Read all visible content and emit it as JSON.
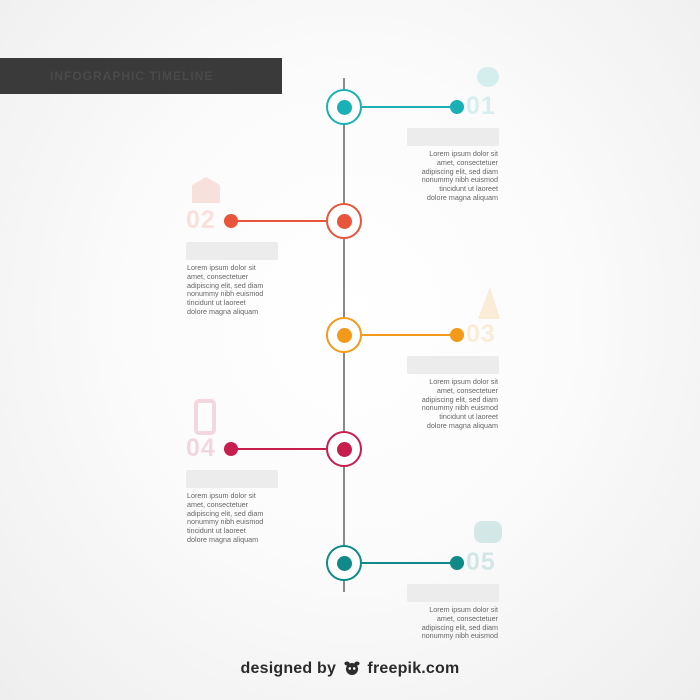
{
  "header": {
    "title": "INFOGRAPHIC TIMELINE"
  },
  "steps": [
    {
      "number": "01",
      "color": "#1bb0b5",
      "side": "right",
      "text": "Lorem ipsum dolor sit\namet, consectetuer\nadipiscing elit, sed diam\nnonummy nibh euismod\ntincidunt ut laoreet\ndolore magna aliquam"
    },
    {
      "number": "02",
      "color": "#e8553a",
      "side": "left",
      "text": "Lorem ipsum dolor sit\namet, consectetuer\nadipiscing elit, sed diam\nnonummy nibh euismod\ntincidunt ut laoreet\ndolore magna aliquam"
    },
    {
      "number": "03",
      "color": "#f39a1a",
      "side": "right",
      "text": "Lorem ipsum dolor sit\namet, consectetuer\nadipiscing elit, sed diam\nnonummy nibh euismod\ntincidunt ut laoreet\ndolore magna aliquam"
    },
    {
      "number": "04",
      "color": "#c81e4e",
      "side": "left",
      "text": "Lorem ipsum dolor sit\namet, consectetuer\nadipiscing elit, sed diam\nnonummy nibh euismod\ntincidunt ut laoreet\ndolore magna aliquam"
    },
    {
      "number": "05",
      "color": "#0f8a88",
      "side": "right",
      "text": "Lorem ipsum dolor sit\namet, consectetuer\nadipiscing elit, sed diam\nnonummy nibh euismod"
    }
  ],
  "footer": {
    "designed_by": "designed by",
    "brand": "freepik.com"
  }
}
